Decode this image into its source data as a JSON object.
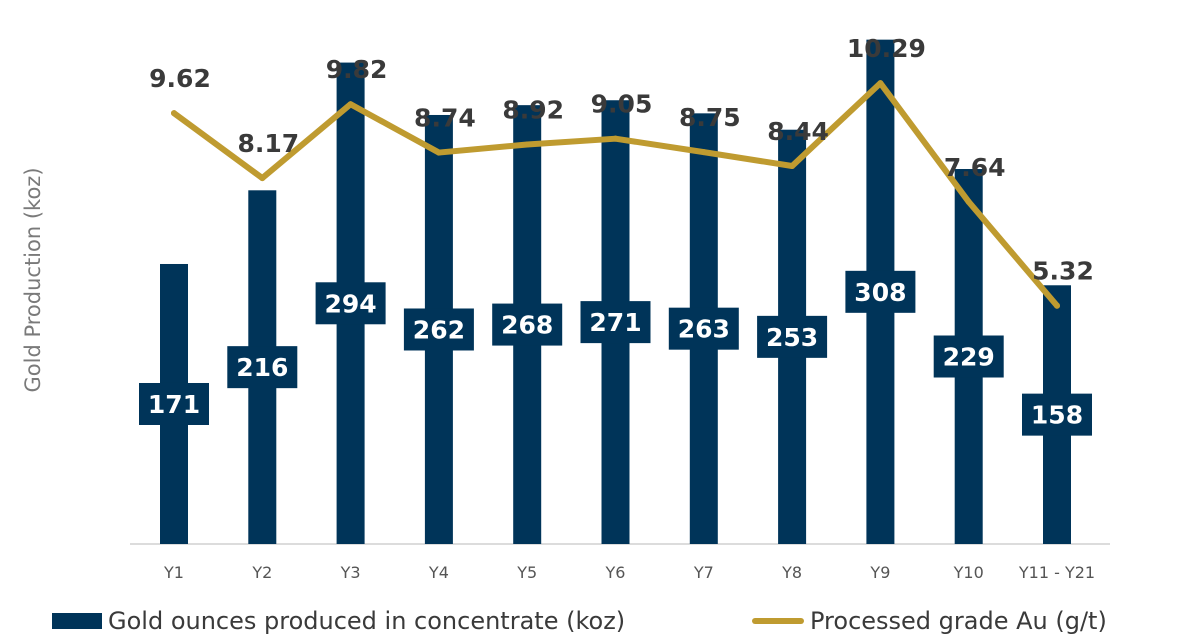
{
  "colors": {
    "bar": "#003459",
    "line": "#BF9B30",
    "axis": "#d0d0d0"
  },
  "chart_data": {
    "type": "bar",
    "title": "",
    "xlabel": "",
    "ylabel": "Gold Production (koz)",
    "ylim": [
      0,
      320
    ],
    "grid": false,
    "legend_position": "bottom",
    "categories": [
      "Y1",
      "Y2",
      "Y3",
      "Y4",
      "Y5",
      "Y6",
      "Y7",
      "Y8",
      "Y9",
      "Y10",
      "Y11 - Y21"
    ],
    "series": [
      {
        "name": "Gold ounces produced in concentrate (koz)",
        "type": "bar",
        "axis": "left",
        "values": [
          171,
          216,
          294,
          262,
          268,
          271,
          263,
          253,
          308,
          229,
          158
        ],
        "labels": [
          "171",
          "216",
          "294",
          "262",
          "268",
          "271",
          "263",
          "253",
          "308",
          "229",
          "158"
        ]
      },
      {
        "name": "Processed grade Au (g/t)",
        "type": "line",
        "axis": "right",
        "ylim": [
          0,
          11.7
        ],
        "values": [
          9.62,
          8.17,
          9.82,
          8.74,
          8.92,
          9.05,
          8.75,
          8.44,
          10.29,
          7.64,
          5.32
        ],
        "labels": [
          "9.62",
          "8.17",
          "9.82",
          "8.74",
          "8.92",
          "9.05",
          "8.75",
          "8.44",
          "10.29",
          "7.64",
          "5.32"
        ]
      }
    ]
  }
}
